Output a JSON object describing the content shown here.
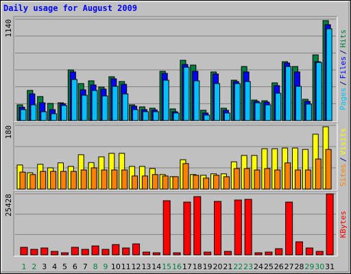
{
  "chart_data": [
    {
      "type": "bar",
      "title": "Daily usage for August 2009",
      "ylim": [
        0,
        1140
      ],
      "yticks": [
        1140
      ],
      "grid_divisions": 6,
      "legend_separator": "/",
      "series": [
        {
          "name": "Hits",
          "color": "#008040",
          "values": [
            177,
            339,
            270,
            193,
            200,
            570,
            416,
            447,
            377,
            493,
            439,
            177,
            154,
            139,
            554,
            131,
            678,
            624,
            116,
            547,
            139,
            454,
            608,
            231,
            223,
            424,
            662,
            608,
            239,
            739,
            1124
          ]
        },
        {
          "name": "Files",
          "color": "#0000FF",
          "values": [
            150,
            300,
            200,
            123,
            190,
            547,
            346,
            400,
            354,
            470,
            408,
            162,
            123,
            120,
            531,
            100,
            631,
            554,
            85,
            524,
            116,
            439,
            547,
            216,
            208,
            393,
            647,
            547,
            216,
            662,
            1078
          ]
        },
        {
          "name": "Pages",
          "color": "#00C0FF",
          "values": [
            123,
            177,
            100,
            77,
            170,
            462,
            285,
            339,
            277,
            385,
            300,
            123,
            100,
            100,
            454,
            85,
            600,
            447,
            62,
            416,
            85,
            416,
            439,
            200,
            177,
            308,
            608,
            385,
            185,
            654,
            1032
          ]
        }
      ]
    },
    {
      "type": "bar",
      "ylim": [
        0,
        180
      ],
      "yticks": [
        180
      ],
      "grid_divisions": 3,
      "legend_separator": "/",
      "series": [
        {
          "name": "Visits",
          "color": "#FFFF00",
          "values": [
            68,
            46,
            70,
            60,
            74,
            64,
            97,
            75,
            91,
            101,
            101,
            64,
            64,
            58,
            41,
            35,
            83,
            41,
            39,
            43,
            43,
            77,
            95,
            95,
            114,
            114,
            116,
            116,
            112,
            155,
            176
          ]
        },
        {
          "name": "Sites",
          "color": "#FF8000",
          "values": [
            48,
            41,
            50,
            50,
            50,
            50,
            54,
            60,
            54,
            54,
            54,
            37,
            37,
            41,
            37,
            35,
            72,
            39,
            31,
            39,
            35,
            58,
            58,
            54,
            58,
            54,
            74,
            54,
            54,
            85,
            112
          ]
        }
      ]
    },
    {
      "type": "bar",
      "ylim": [
        0,
        25428
      ],
      "yticks": [
        25428
      ],
      "grid_divisions": 3,
      "categories": [
        "1",
        "2",
        "3",
        "4",
        "5",
        "6",
        "7",
        "8",
        "9",
        "10",
        "11",
        "12",
        "13",
        "14",
        "15",
        "16",
        "17",
        "18",
        "19",
        "20",
        "21",
        "22",
        "23",
        "24",
        "25",
        "26",
        "27",
        "28",
        "29",
        "30",
        "31"
      ],
      "category_colors": [
        "#008040",
        "#008040",
        "#000000",
        "#000000",
        "#000000",
        "#000000",
        "#000000",
        "#008040",
        "#008040",
        "#000000",
        "#000000",
        "#000000",
        "#000000",
        "#000000",
        "#008040",
        "#008040",
        "#000000",
        "#000000",
        "#000000",
        "#000000",
        "#000000",
        "#008040",
        "#008040",
        "#000000",
        "#000000",
        "#000000",
        "#000000",
        "#000000",
        "#008040",
        "#008040",
        "#000000"
      ],
      "series": [
        {
          "name": "KBytes",
          "color": "#FF0000",
          "values": [
            3143,
            2286,
            2857,
            1429,
            857,
            3143,
            2286,
            3714,
            2286,
            4286,
            2857,
            4571,
            1143,
            857,
            22571,
            857,
            22000,
            24286,
            1143,
            22286,
            1429,
            22857,
            23143,
            857,
            1143,
            2571,
            22000,
            5429,
            2857,
            1429,
            25428
          ]
        }
      ]
    }
  ]
}
